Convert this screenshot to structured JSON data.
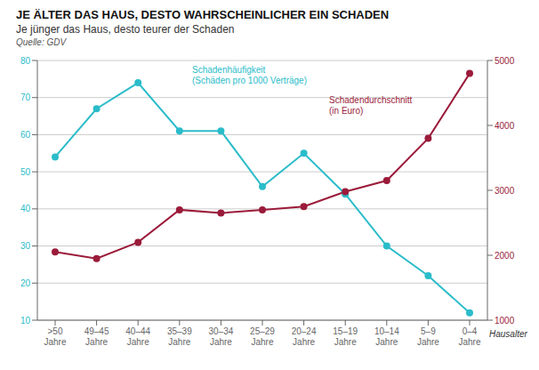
{
  "chart_data": {
    "type": "line",
    "title": "JE ÄLTER DAS HAUS, DESTO WAHRSCHEINLICHER EIN SCHADEN",
    "subtitle": "Je jünger das Haus, desto teurer der Schaden",
    "source": "Quelle: GDV",
    "x_label": "Hausalter",
    "categories": [
      ">50\nJahre",
      "49–45\nJahre",
      "40–44\nJahre",
      "35–39\nJahre",
      "30–34\nJahre",
      "25–29\nJahre",
      "20–24\nJahre",
      "15–19\nJahre",
      "10–14\nJahre",
      "5–9\nJahre",
      "0–4\nJahre"
    ],
    "series": [
      {
        "color": "#2BBCCA",
        "marker": "circle",
        "values": [
          54,
          67,
          74,
          61,
          61,
          46,
          55,
          44,
          30,
          22,
          12
        ]
      },
      {
        "color": "#9B1B3A",
        "marker": "circle",
        "axis": "y2",
        "values": [
          2050,
          1950,
          2200,
          2700,
          2650,
          2700,
          2750,
          2980,
          3150,
          3800,
          4800
        ]
      }
    ],
    "annotations": [
      "Schadenhäufigkeit\n(Schäden pro 1000 Verträge)",
      "Schadendurchschnitt\n(in Euro)"
    ],
    "ylim": [
      10,
      80
    ],
    "yticks": [
      10,
      20,
      30,
      40,
      50,
      60,
      70,
      80
    ],
    "y2lim": [
      1000,
      5000
    ],
    "y2ticks": [
      1000,
      2000,
      3000,
      4000,
      5000
    ],
    "grid": true
  }
}
